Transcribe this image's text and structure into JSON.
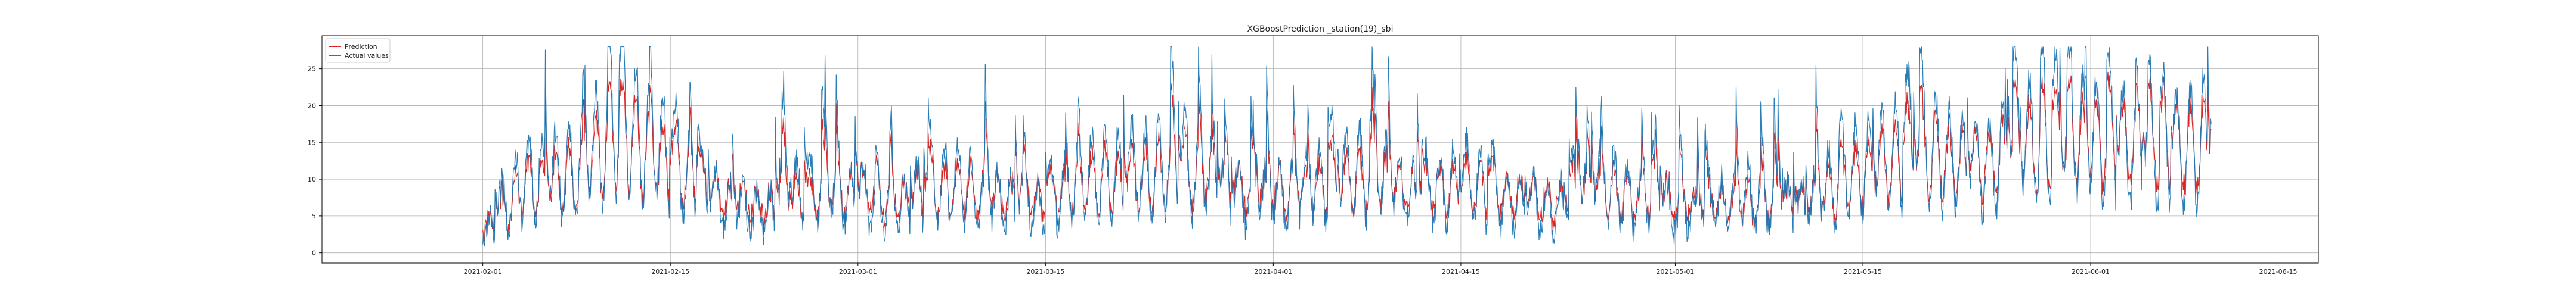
{
  "chart_data": {
    "type": "line",
    "title": "XGBoostPrediction _station(19)_sbi",
    "xlabel": "",
    "ylabel": "",
    "x_range": [
      "2021-01-20",
      "2021-06-18"
    ],
    "ylim": [
      -1.4,
      29.5
    ],
    "grid": true,
    "legend_position": "top-left",
    "x_ticks": [
      "2021-02-01",
      "2021-02-15",
      "2021-03-01",
      "2021-03-15",
      "2021-04-01",
      "2021-04-15",
      "2021-05-01",
      "2021-05-15",
      "2021-06-01",
      "2021-06-15"
    ],
    "y_ticks": [
      0,
      5,
      10,
      15,
      20,
      25
    ],
    "data_start": "2021-02-01",
    "data_end": "2021-06-10",
    "series": [
      {
        "name": "Prediction",
        "color": "#d62728",
        "dates": [
          "2021-02-01",
          "2021-02-04",
          "2021-02-08",
          "2021-02-11",
          "2021-02-15",
          "2021-02-18",
          "2021-02-22",
          "2021-02-25",
          "2021-03-01",
          "2021-03-04",
          "2021-03-08",
          "2021-03-11",
          "2021-03-15",
          "2021-03-18",
          "2021-03-22",
          "2021-03-25",
          "2021-03-29",
          "2021-04-01",
          "2021-04-05",
          "2021-04-08",
          "2021-04-12",
          "2021-04-15",
          "2021-04-19",
          "2021-04-22",
          "2021-04-26",
          "2021-04-29",
          "2021-05-03",
          "2021-05-06",
          "2021-05-10",
          "2021-05-13",
          "2021-05-17",
          "2021-05-20",
          "2021-05-24",
          "2021-05-27",
          "2021-05-31",
          "2021-06-03",
          "2021-06-07",
          "2021-06-10"
        ],
        "values": [
          3,
          9,
          10,
          16,
          12,
          8,
          6,
          7,
          8,
          7,
          9,
          8,
          7,
          9,
          10,
          11,
          9,
          8,
          9,
          10,
          8,
          9,
          8,
          7,
          8,
          7,
          6,
          7,
          6,
          9,
          12,
          13,
          12,
          14,
          15,
          15,
          14,
          15
        ]
      },
      {
        "name": "Actual values",
        "color": "#1f77b4",
        "dates": [
          "2021-02-01",
          "2021-02-04",
          "2021-02-08",
          "2021-02-11",
          "2021-02-15",
          "2021-02-18",
          "2021-02-22",
          "2021-02-25",
          "2021-03-01",
          "2021-03-04",
          "2021-03-08",
          "2021-03-11",
          "2021-03-15",
          "2021-03-18",
          "2021-03-22",
          "2021-03-25",
          "2021-03-29",
          "2021-04-01",
          "2021-04-05",
          "2021-04-08",
          "2021-04-12",
          "2021-04-15",
          "2021-04-19",
          "2021-04-22",
          "2021-04-26",
          "2021-04-29",
          "2021-05-03",
          "2021-05-06",
          "2021-05-10",
          "2021-05-13",
          "2021-05-17",
          "2021-05-20",
          "2021-05-24",
          "2021-05-27",
          "2021-05-31",
          "2021-06-03",
          "2021-06-07",
          "2021-06-10"
        ],
        "values": [
          2,
          10,
          11,
          18,
          13,
          7,
          5,
          8,
          7,
          6,
          10,
          7,
          6,
          10,
          11,
          12,
          8,
          7,
          10,
          11,
          7,
          10,
          7,
          6,
          9,
          6,
          5,
          8,
          5,
          10,
          13,
          14,
          11,
          15,
          16,
          14,
          13,
          16
        ]
      }
    ]
  }
}
